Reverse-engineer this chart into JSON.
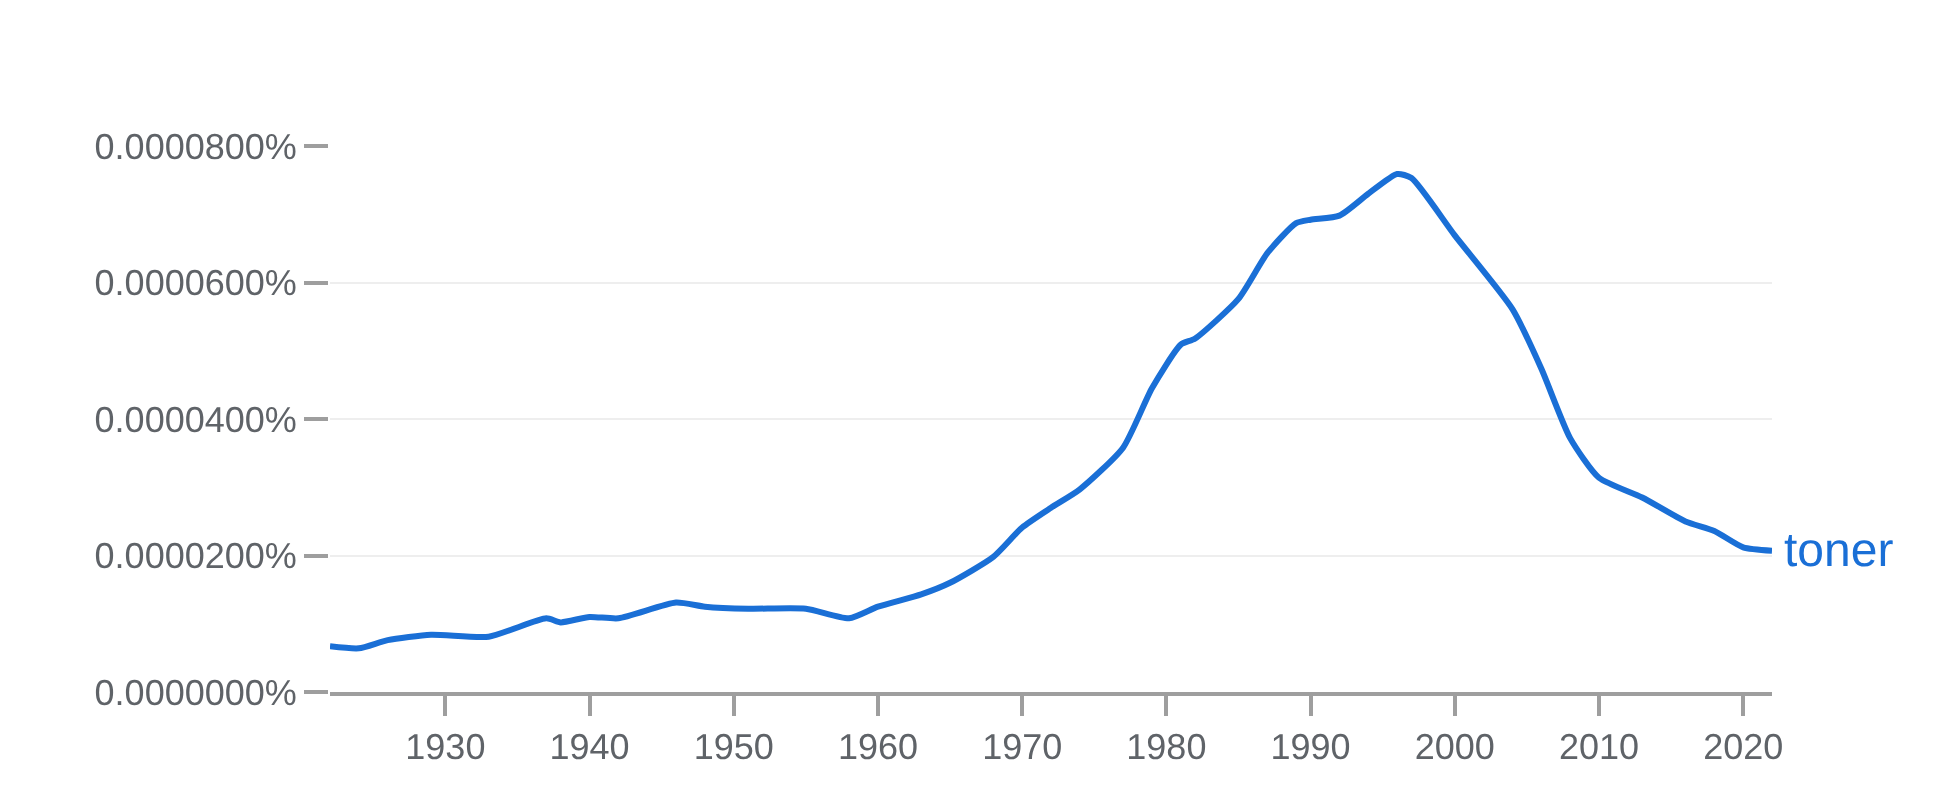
{
  "chart_data": {
    "type": "line",
    "x": [
      1922,
      1924,
      1926,
      1929,
      1933,
      1937,
      1938,
      1940,
      1942,
      1946,
      1948,
      1951,
      1955,
      1958,
      1960,
      1963,
      1965,
      1968,
      1970,
      1972,
      1974,
      1977,
      1979,
      1981,
      1982,
      1985,
      1987,
      1989,
      1990,
      1992,
      1994,
      1996,
      1997,
      2000,
      2004,
      2006,
      2008,
      2010,
      2013,
      2016,
      2018,
      2020,
      2022
    ],
    "series": [
      {
        "name": "toner",
        "color": "#1a6fd6",
        "values": [
          6.7e-06,
          6.4e-06,
          7.6e-06,
          8.4e-06,
          8.1e-06,
          1.08e-05,
          1.02e-05,
          1.1e-05,
          1.08e-05,
          1.31e-05,
          1.25e-05,
          1.22e-05,
          1.22e-05,
          1.08e-05,
          1.25e-05,
          1.43e-05,
          1.6e-05,
          1.98e-05,
          2.41e-05,
          2.7e-05,
          2.97e-05,
          3.58e-05,
          4.45e-05,
          5.09e-05,
          5.18e-05,
          5.76e-05,
          6.43e-05,
          6.87e-05,
          6.92e-05,
          6.98e-05,
          7.3e-05,
          7.59e-05,
          7.53e-05,
          6.69e-05,
          5.61e-05,
          4.74e-05,
          3.72e-05,
          3.14e-05,
          2.85e-05,
          2.5e-05,
          2.36e-05,
          2.12e-05,
          2.07e-05
        ]
      }
    ],
    "xlim": [
      1922,
      2022
    ],
    "xticks": [
      1930,
      1940,
      1950,
      1960,
      1970,
      1980,
      1990,
      2000,
      2010,
      2020
    ],
    "ylim": [
      0,
      8e-05
    ],
    "yticks": [
      {
        "value": 0,
        "label": "0.0000000%"
      },
      {
        "value": 2e-05,
        "label": "0.0000200%"
      },
      {
        "value": 4e-05,
        "label": "0.0000400%"
      },
      {
        "value": 6e-05,
        "label": "0.0000600%"
      },
      {
        "value": 8e-05,
        "label": "0.0000800%"
      }
    ],
    "grid": "y",
    "marker": "none",
    "line_style": "solid"
  }
}
